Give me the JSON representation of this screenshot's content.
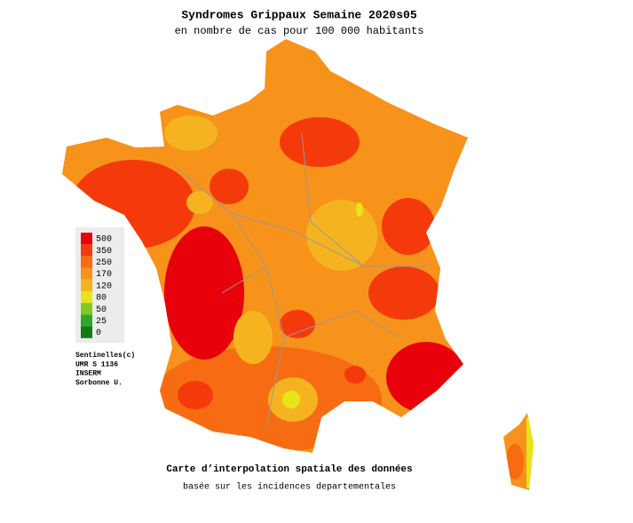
{
  "title": "Syndromes Grippaux Semaine 2020s05",
  "subtitle": "en nombre de cas pour 100 000 habitants",
  "legend": {
    "levels": [
      {
        "value": 500,
        "color": "#e8000b"
      },
      {
        "value": 350,
        "color": "#f43a0a"
      },
      {
        "value": 250,
        "color": "#f76b12"
      },
      {
        "value": 170,
        "color": "#f7921a"
      },
      {
        "value": 120,
        "color": "#f5b41f"
      },
      {
        "value": 80,
        "color": "#e8e41a"
      },
      {
        "value": 50,
        "color": "#84c81e"
      },
      {
        "value": 25,
        "color": "#2ea82a"
      },
      {
        "value": 0,
        "color": "#137a1a"
      }
    ]
  },
  "credits": [
    "Sentinelles(c)",
    "UMR S 1136",
    "INSERM",
    "Sorbonne U."
  ],
  "footer": {
    "title": "Carte d’interpolation spatiale des données",
    "subtitle": "basée sur les incidences departementales"
  }
}
